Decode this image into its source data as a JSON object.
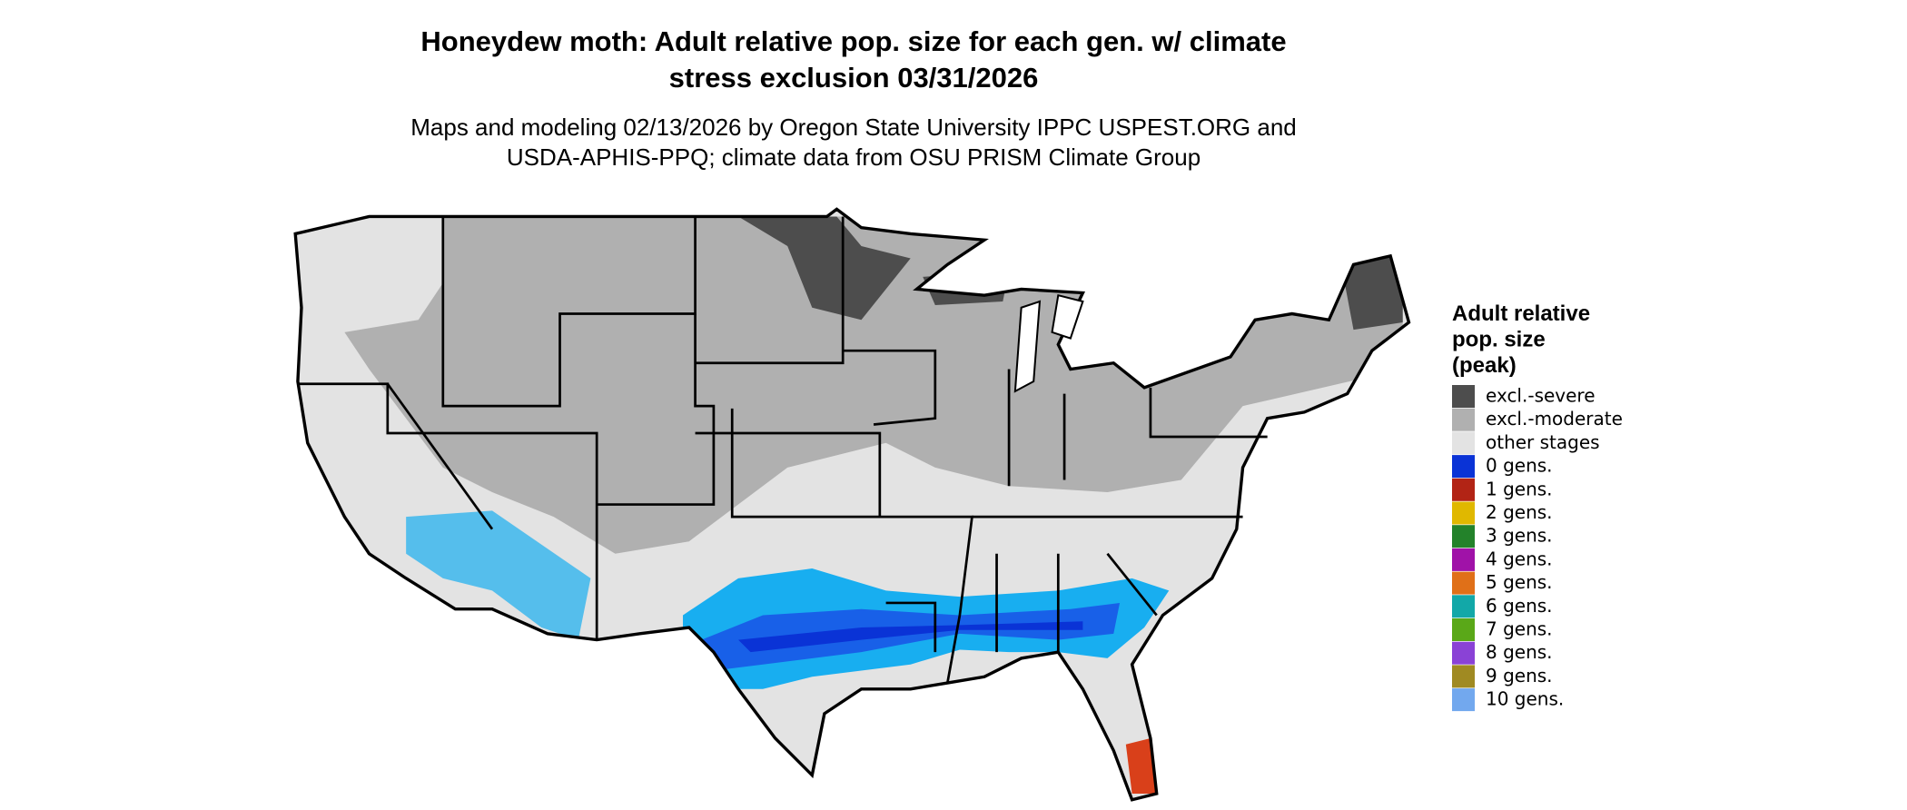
{
  "title": [
    "Honeydew moth: Adult relative pop. size for each gen. w/ climate",
    "stress exclusion 03/31/2026"
  ],
  "subtitle": [
    "Maps and modeling 02/13/2026 by Oregon State University IPPC USPEST.ORG and",
    "USDA-APHIS-PPQ; climate data from OSU PRISM Climate Group"
  ],
  "legend": {
    "title": [
      "Adult relative",
      "pop. size",
      "(peak)"
    ],
    "items": [
      {
        "label": "excl.-severe",
        "color": "#4d4d4d"
      },
      {
        "label": "excl.-moderate",
        "color": "#b0b0b0"
      },
      {
        "label": "other stages",
        "color": "#e3e3e3"
      },
      {
        "label": "0 gens.",
        "color": "#0a33d6"
      },
      {
        "label": "1 gens.",
        "color": "#b22415"
      },
      {
        "label": "2 gens.",
        "color": "#e0b800"
      },
      {
        "label": "3 gens.",
        "color": "#23822a"
      },
      {
        "label": "4 gens.",
        "color": "#a012a8"
      },
      {
        "label": "5 gens.",
        "color": "#e07018"
      },
      {
        "label": "6 gens.",
        "color": "#12a8a8"
      },
      {
        "label": "7 gens.",
        "color": "#5aa818"
      },
      {
        "label": "8 gens.",
        "color": "#8a42d6"
      },
      {
        "label": "9 gens.",
        "color": "#a08a22"
      },
      {
        "label": "10 gens.",
        "color": "#72a8ee"
      }
    ]
  }
}
